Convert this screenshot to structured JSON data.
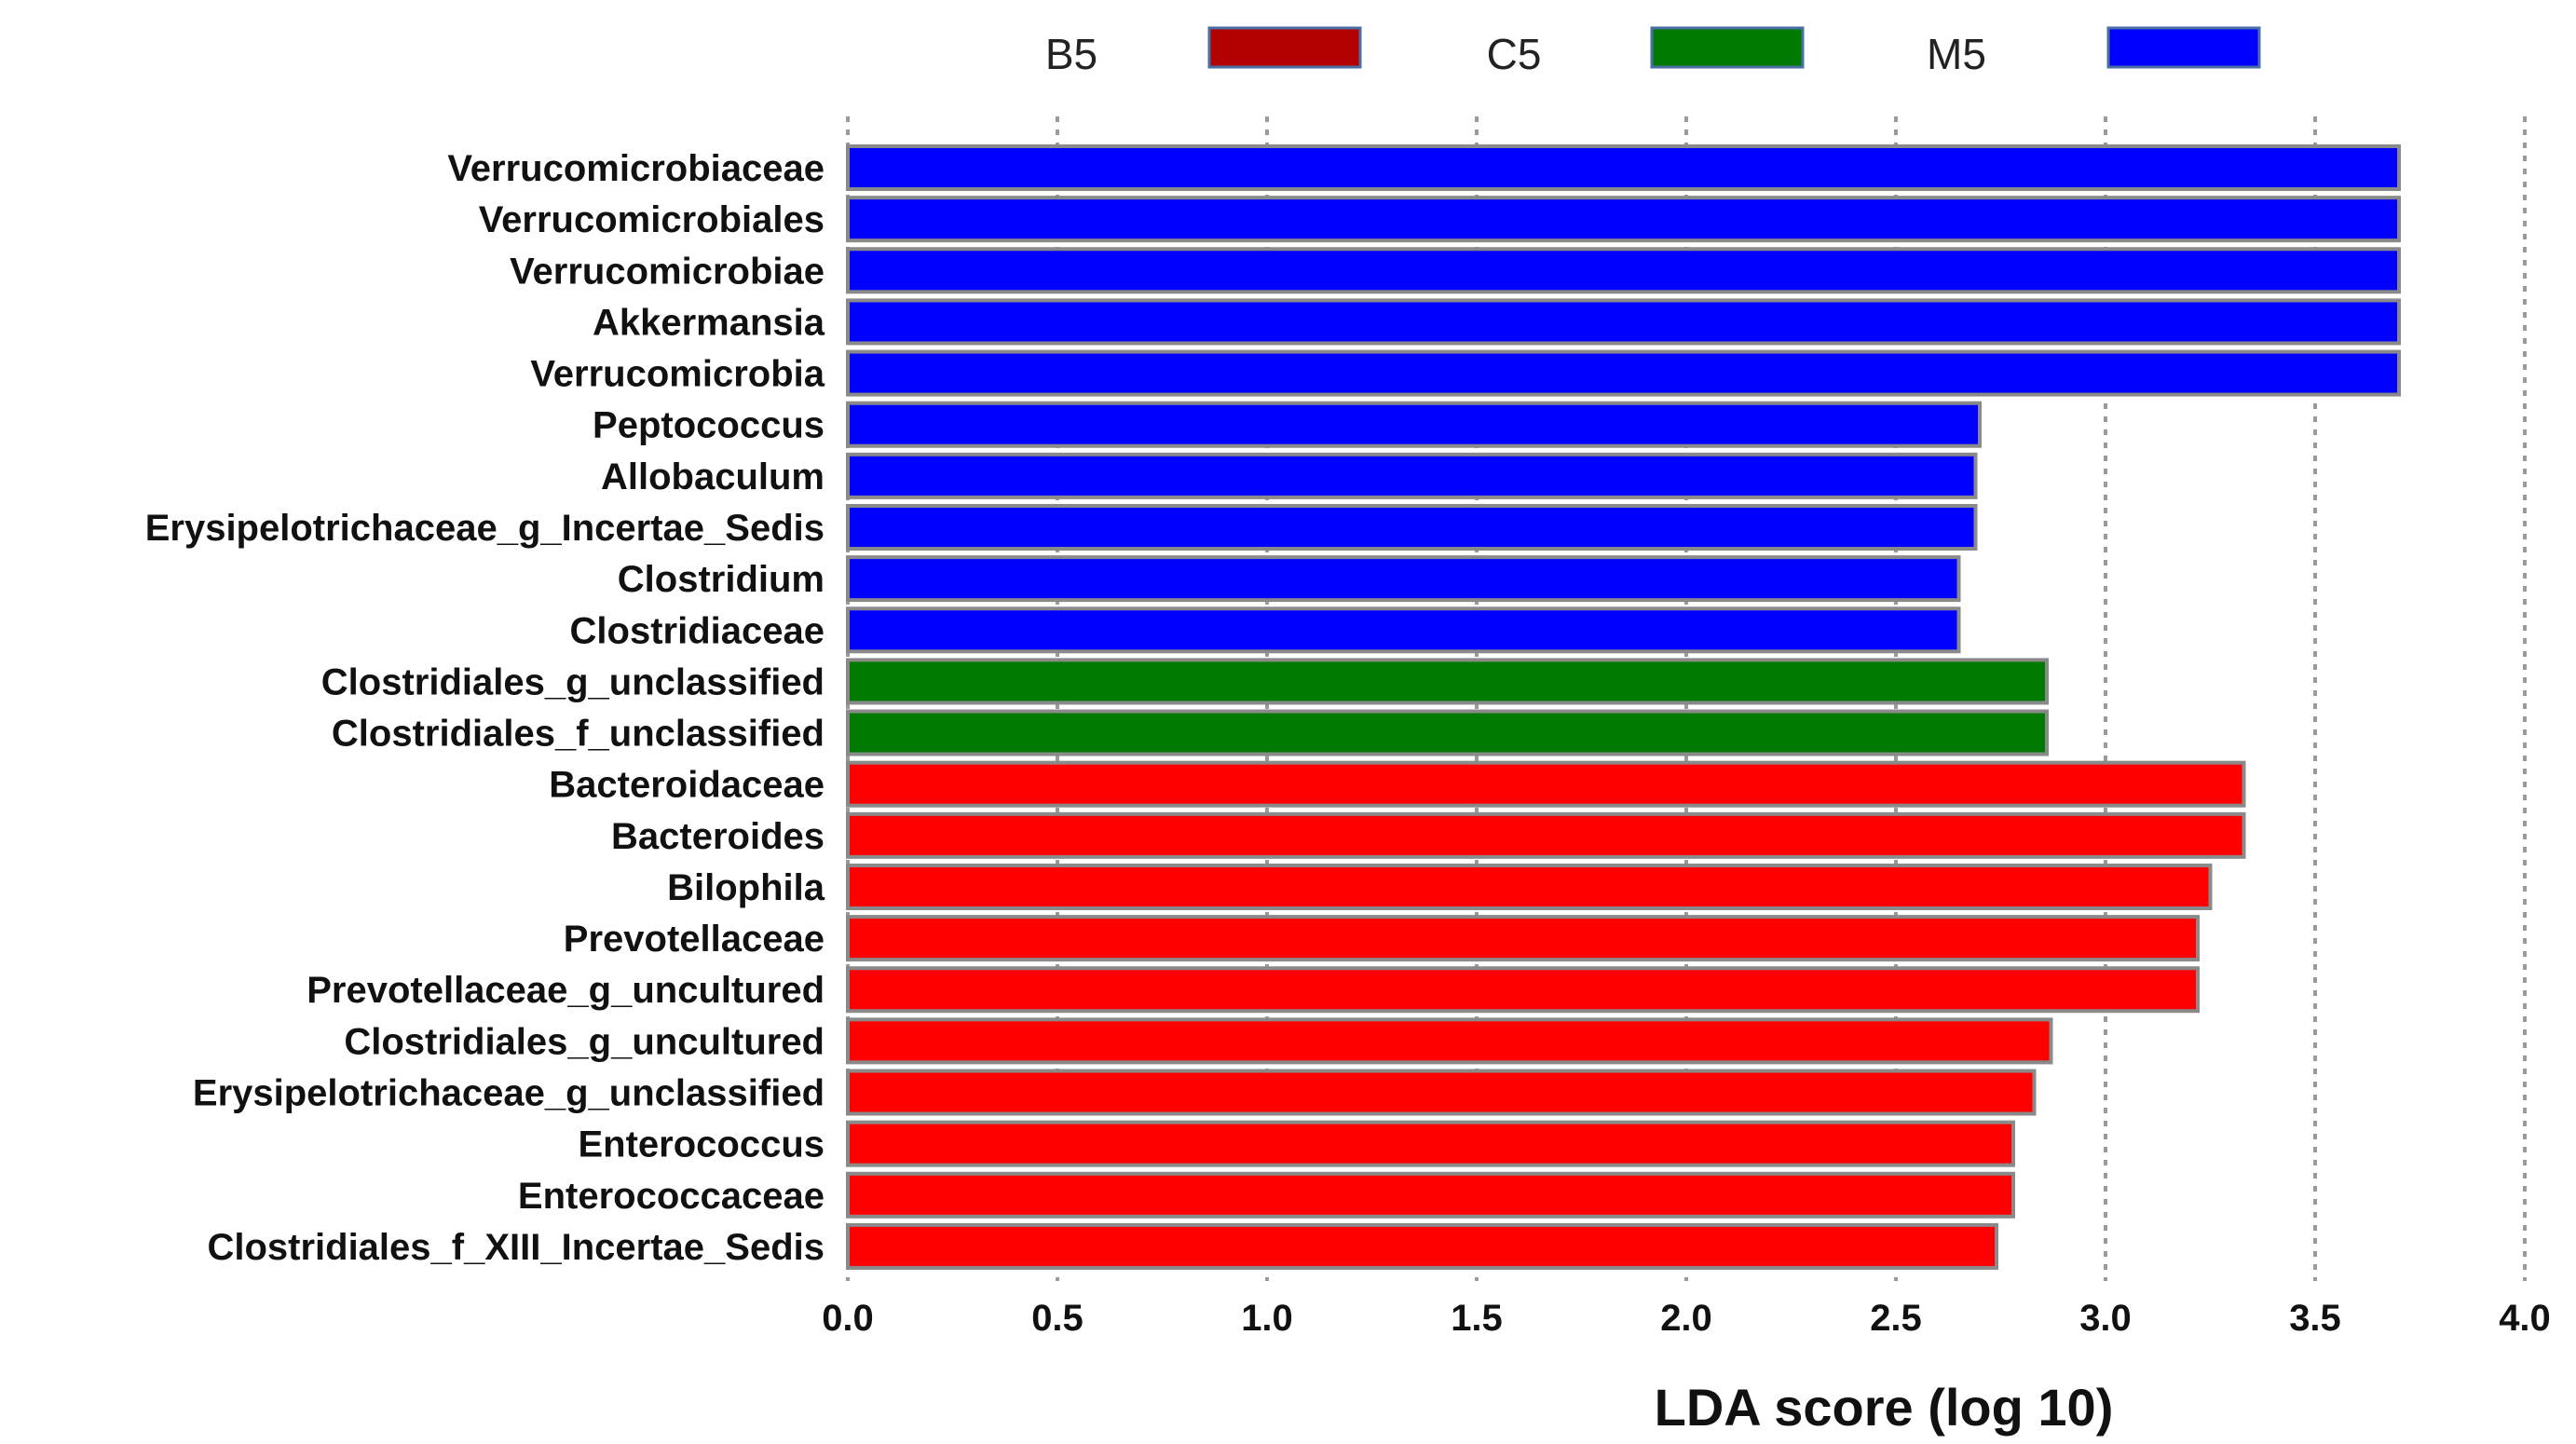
{
  "chart_data": {
    "type": "bar",
    "orientation": "horizontal",
    "xlabel": "LDA  score (log 10)",
    "xlim": [
      0.0,
      4.0
    ],
    "x_ticks": [
      "0.0",
      "0.5",
      "1.0",
      "1.5",
      "2.0",
      "2.5",
      "3.0",
      "3.5",
      "4.0"
    ],
    "grid": true,
    "legend": [
      {
        "name": "B5",
        "color": "#ff0000"
      },
      {
        "name": "C5",
        "color": "#007a00"
      },
      {
        "name": "M5",
        "color": "#0000ff"
      }
    ],
    "bars": [
      {
        "label": "Verrucomicrobiaceae",
        "value": 3.7,
        "group": "M5"
      },
      {
        "label": "Verrucomicrobiales",
        "value": 3.7,
        "group": "M5"
      },
      {
        "label": "Verrucomicrobiae",
        "value": 3.7,
        "group": "M5"
      },
      {
        "label": "Akkermansia",
        "value": 3.7,
        "group": "M5"
      },
      {
        "label": "Verrucomicrobia",
        "value": 3.7,
        "group": "M5"
      },
      {
        "label": "Peptococcus",
        "value": 2.7,
        "group": "M5"
      },
      {
        "label": "Allobaculum",
        "value": 2.69,
        "group": "M5"
      },
      {
        "label": "Erysipelotrichaceae_g_Incertae_Sedis",
        "value": 2.69,
        "group": "M5"
      },
      {
        "label": "Clostridium",
        "value": 2.65,
        "group": "M5"
      },
      {
        "label": "Clostridiaceae",
        "value": 2.65,
        "group": "M5"
      },
      {
        "label": "Clostridiales_g_unclassified",
        "value": 2.86,
        "group": "C5"
      },
      {
        "label": "Clostridiales_f_unclassified",
        "value": 2.86,
        "group": "C5"
      },
      {
        "label": "Bacteroidaceae",
        "value": 3.33,
        "group": "B5"
      },
      {
        "label": "Bacteroides",
        "value": 3.33,
        "group": "B5"
      },
      {
        "label": "Bilophila",
        "value": 3.25,
        "group": "B5"
      },
      {
        "label": "Prevotellaceae",
        "value": 3.22,
        "group": "B5"
      },
      {
        "label": "Prevotellaceae_g_uncultured",
        "value": 3.22,
        "group": "B5"
      },
      {
        "label": "Clostridiales_g_uncultured",
        "value": 2.87,
        "group": "B5"
      },
      {
        "label": "Erysipelotrichaceae_g_unclassified",
        "value": 2.83,
        "group": "B5"
      },
      {
        "label": "Enterococcus",
        "value": 2.78,
        "group": "B5"
      },
      {
        "label": "Enterococcaceae",
        "value": 2.78,
        "group": "B5"
      },
      {
        "label": "Clostridiales_f_XIII_Incertae_Sedis",
        "value": 2.74,
        "group": "B5"
      }
    ]
  }
}
